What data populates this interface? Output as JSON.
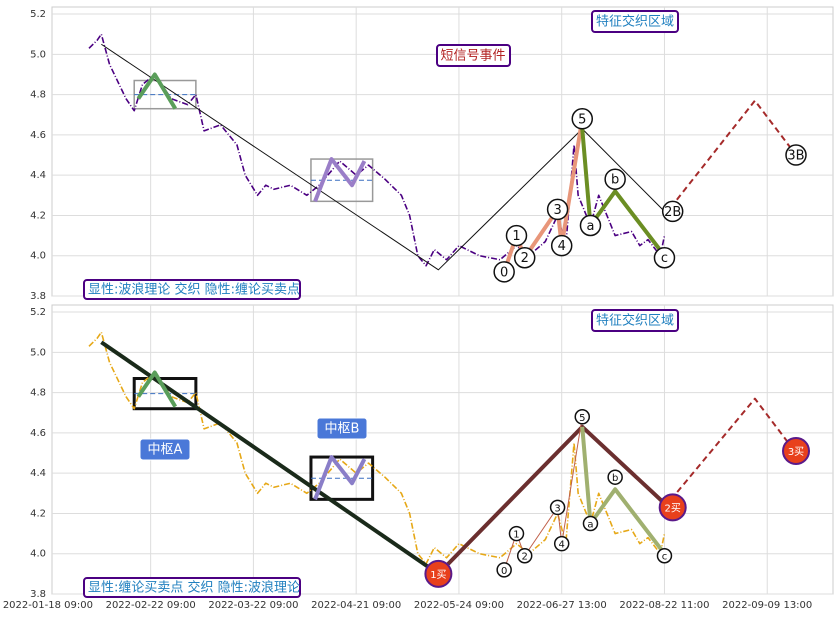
{
  "chart_data": [
    {
      "type": "line",
      "xlim": [
        1,
        191
      ],
      "ylim": [
        3.8,
        5.235
      ],
      "yticks": [
        3.8,
        {
          "value": 4,
          "label": "4.0"
        },
        4.2,
        4.4,
        4.6,
        4.8,
        {
          "value": 5,
          "label": "5.0"
        },
        5.2
      ],
      "grid": true,
      "series": [
        {
          "color": "#4b0082",
          "style": "dashdot",
          "x": [
            10,
            12,
            13,
            15,
            19,
            21,
            23,
            26,
            30,
            34,
            36,
            38,
            42,
            46,
            48,
            51,
            53,
            55,
            59,
            63,
            66,
            71,
            75,
            78,
            82,
            86,
            88,
            90,
            92,
            94,
            97,
            100,
            105,
            110,
            114,
            117,
            121,
            124,
            126,
            128,
            129,
            132,
            134,
            138,
            142,
            144,
            146,
            149,
            150
          ],
          "values": [
            5.03,
            5.07,
            5.1,
            4.95,
            4.78,
            4.72,
            4.85,
            4.9,
            4.78,
            4.75,
            4.8,
            4.62,
            4.65,
            4.55,
            4.4,
            4.3,
            4.35,
            4.33,
            4.35,
            4.3,
            4.35,
            4.47,
            4.4,
            4.45,
            4.38,
            4.3,
            4.2,
            4.0,
            3.95,
            4.03,
            3.98,
            4.05,
            4.0,
            3.98,
            4.05,
            4.0,
            4.07,
            4.2,
            4.05,
            4.55,
            4.3,
            4.15,
            4.3,
            4.1,
            4.12,
            4.05,
            4.08,
            4.0,
            4.1
          ]
        },
        {
          "color": "#111111",
          "style": "thin",
          "x": [
            13,
            95,
            130,
            150
          ],
          "values": [
            5.05,
            3.93,
            4.63,
            4.22
          ]
        },
        {
          "color": "#5a9e5a",
          "style": "thick",
          "x": [
            22,
            26,
            31
          ],
          "values": [
            4.78,
            4.9,
            4.73
          ]
        },
        {
          "color": "#9a7ec8",
          "style": "thick",
          "x": [
            65,
            69,
            74,
            77
          ],
          "values": [
            4.27,
            4.48,
            4.35,
            4.47
          ]
        },
        {
          "color": "#e8967a",
          "style": "thick",
          "x": [
            111,
            114,
            116,
            124,
            125,
            130
          ],
          "values": [
            3.92,
            4.1,
            3.99,
            4.23,
            4.05,
            4.68
          ]
        },
        {
          "color": "#6b8e23",
          "style": "thick",
          "x": [
            130,
            132,
            138,
            150
          ],
          "values": [
            4.63,
            4.15,
            4.32,
            4.0
          ]
        },
        {
          "color": "#a52a2a",
          "style": "dashed",
          "x": [
            150,
            172,
            182
          ],
          "values": [
            4.2,
            4.77,
            4.5
          ]
        }
      ],
      "zones": [
        {
          "x": [
            21,
            36
          ],
          "y": [
            4.73,
            4.87
          ]
        },
        {
          "x": [
            64,
            79
          ],
          "y": [
            4.27,
            4.48
          ]
        }
      ],
      "points": [
        {
          "label": "0",
          "x": 111,
          "y": 3.92
        },
        {
          "label": "1",
          "x": 114,
          "y": 4.1
        },
        {
          "label": "2",
          "x": 116,
          "y": 3.99
        },
        {
          "label": "3",
          "x": 124,
          "y": 4.23
        },
        {
          "label": "4",
          "x": 125,
          "y": 4.05
        },
        {
          "label": "5",
          "x": 130,
          "y": 4.68
        },
        {
          "label": "a",
          "x": 132,
          "y": 4.15
        },
        {
          "label": "b",
          "x": 138,
          "y": 4.38
        },
        {
          "label": "c",
          "x": 150,
          "y": 3.99
        },
        {
          "label": "2B",
          "x": 152,
          "y": 4.22
        },
        {
          "label": "3B",
          "x": 182,
          "y": 4.5
        }
      ],
      "annotations": [
        "显性:波浪理论 交织 隐性:缠论买卖点",
        "特征交织区域",
        "短信号事件"
      ]
    },
    {
      "type": "line",
      "xlim": [
        1,
        191
      ],
      "ylim": [
        3.8,
        5.235
      ],
      "yticks": [
        3.8,
        {
          "value": 4,
          "label": "4.0"
        },
        4.2,
        4.4,
        4.6,
        4.8,
        {
          "value": 5,
          "label": "5.0"
        },
        5.2
      ],
      "grid": true,
      "xticks": [
        {
          "value": 0,
          "label": "2022-01-18 09:00"
        },
        {
          "value": 25,
          "label": "2022-02-22 09:00"
        },
        {
          "value": 50,
          "label": "2022-03-22 09:00"
        },
        {
          "value": 75,
          "label": "2022-04-21 09:00"
        },
        {
          "value": 100,
          "label": "2022-05-24 09:00"
        },
        {
          "value": 125,
          "label": "2022-06-27 13:00"
        },
        {
          "value": 150,
          "label": "2022-08-22 11:00"
        },
        {
          "value": 175,
          "label": "2022-09-09 13:00"
        }
      ],
      "series": [
        {
          "color": "#e6a817",
          "style": "dashdot",
          "x": [
            10,
            12,
            13,
            15,
            19,
            21,
            23,
            26,
            30,
            34,
            36,
            38,
            42,
            46,
            48,
            51,
            53,
            55,
            59,
            63,
            66,
            71,
            75,
            78,
            82,
            86,
            88,
            90,
            92,
            94,
            97,
            100,
            105,
            110,
            114,
            117,
            121,
            124,
            126,
            128,
            129,
            132,
            134,
            138,
            142,
            144,
            146,
            149,
            150
          ],
          "values": [
            5.03,
            5.07,
            5.1,
            4.95,
            4.78,
            4.72,
            4.85,
            4.9,
            4.78,
            4.75,
            4.8,
            4.62,
            4.65,
            4.55,
            4.4,
            4.3,
            4.35,
            4.33,
            4.35,
            4.3,
            4.35,
            4.47,
            4.4,
            4.45,
            4.38,
            4.3,
            4.2,
            4.0,
            3.95,
            4.03,
            3.98,
            4.05,
            4.0,
            3.98,
            4.05,
            4.0,
            4.07,
            4.2,
            4.05,
            4.55,
            4.3,
            4.15,
            4.3,
            4.1,
            4.12,
            4.05,
            4.08,
            4.0,
            4.1
          ]
        },
        {
          "color": "#1a2a1a",
          "style": "thick",
          "x": [
            13,
            95
          ],
          "values": [
            5.05,
            3.9
          ]
        },
        {
          "color": "#6b2f2f",
          "style": "thick",
          "x": [
            95,
            130,
            150
          ],
          "values": [
            3.9,
            4.63,
            4.25
          ]
        },
        {
          "color": "#5a9e5a",
          "style": "thick",
          "x": [
            22,
            26,
            31
          ],
          "values": [
            4.78,
            4.9,
            4.73
          ]
        },
        {
          "color": "#8a7ec8",
          "style": "thick",
          "x": [
            65,
            69,
            74,
            77
          ],
          "values": [
            4.27,
            4.48,
            4.35,
            4.47
          ]
        },
        {
          "color": "#c0604a",
          "style": "thin",
          "x": [
            111,
            114,
            116,
            124,
            125,
            130
          ],
          "values": [
            3.92,
            4.1,
            3.99,
            4.23,
            4.05,
            4.68
          ]
        },
        {
          "color": "#a0b070",
          "style": "thick",
          "x": [
            130,
            132,
            138,
            150
          ],
          "values": [
            4.63,
            4.15,
            4.32,
            4.0
          ]
        },
        {
          "color": "#a52a2a",
          "style": "dashed",
          "x": [
            150,
            172,
            182
          ],
          "values": [
            4.23,
            4.77,
            4.5
          ]
        }
      ],
      "zones": [
        {
          "x": [
            21,
            36
          ],
          "y": [
            4.72,
            4.87
          ]
        },
        {
          "x": [
            64,
            79
          ],
          "y": [
            4.27,
            4.48
          ]
        }
      ],
      "points": [
        {
          "label": "0",
          "x": 111,
          "y": 3.92
        },
        {
          "label": "1",
          "x": 114,
          "y": 4.1
        },
        {
          "label": "2",
          "x": 116,
          "y": 3.99
        },
        {
          "label": "3",
          "x": 124,
          "y": 4.23
        },
        {
          "label": "4",
          "x": 125,
          "y": 4.05
        },
        {
          "label": "5",
          "x": 130,
          "y": 4.68
        },
        {
          "label": "a",
          "x": 132,
          "y": 4.15
        },
        {
          "label": "b",
          "x": 138,
          "y": 4.38
        },
        {
          "label": "c",
          "x": 150,
          "y": 3.99
        },
        {
          "label": "1买",
          "x": 95,
          "y": 3.9
        },
        {
          "label": "2买",
          "x": 152,
          "y": 4.23
        },
        {
          "label": "3买",
          "x": 182,
          "y": 4.51
        }
      ],
      "annotations": [
        "显性:缠论买卖点 交织 隐性:波浪理论",
        "特征交织区域",
        "中枢A",
        "中枢B"
      ]
    }
  ]
}
